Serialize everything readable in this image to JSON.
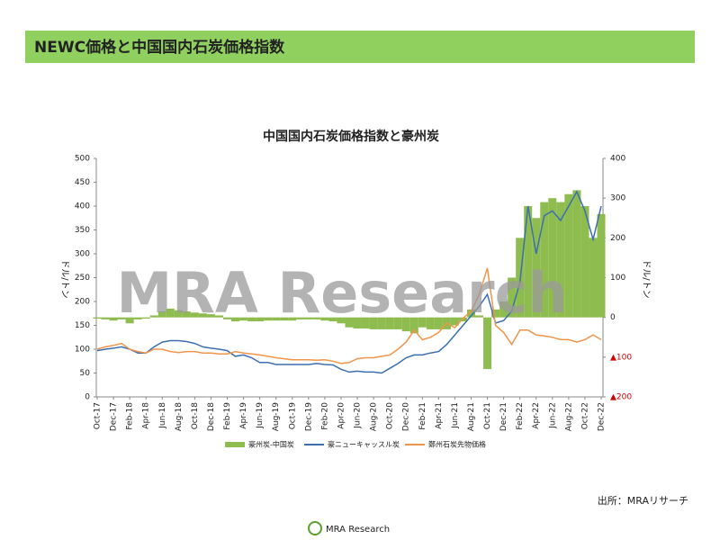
{
  "slide_title": "NEWC価格と中国国内石炭価格指数",
  "source": "出所：MRAリサーチ",
  "logo_text": "MRA Research",
  "chart_data": {
    "type": "combo",
    "title": "中国国内石炭価格指数と豪州炭",
    "watermark": "MRA Research",
    "y_label": "ドル/トン",
    "y2_label": "ドル/トン",
    "categories": [
      "Oct-17",
      null,
      "Dec-17",
      null,
      "Feb-18",
      null,
      "Apr-18",
      null,
      "Jun-18",
      null,
      "Aug-18",
      null,
      "Oct-18",
      null,
      "Dec-18",
      null,
      "Feb-19",
      null,
      "Apr-19",
      null,
      "Jun-19",
      null,
      "Aug-19",
      null,
      "Oct-19",
      null,
      "Dec-19",
      null,
      "Feb-20",
      null,
      "Apr-20",
      null,
      "Jun-20",
      null,
      "Aug-20",
      null,
      "Oct-20",
      null,
      "Dec-20",
      null,
      "Feb-21",
      null,
      "Apr-21",
      null,
      "Jun-21",
      null,
      "Aug-21",
      null,
      "Oct-21",
      null,
      "Dec-21",
      null,
      "Feb-22",
      null,
      "Apr-22",
      null,
      "Jun-22",
      null,
      "Aug-22",
      null,
      "Oct-22",
      null,
      "Dec-22"
    ],
    "ylim": [
      0,
      500
    ],
    "yticks": [
      0,
      50,
      100,
      150,
      200,
      250,
      300,
      350,
      400,
      450,
      500
    ],
    "y2lim": [
      -200,
      400
    ],
    "y2ticks": [
      400,
      300,
      200,
      100,
      0,
      {
        "value": -100,
        "label": "▲100"
      },
      {
        "value": -200,
        "label": "▲200"
      }
    ],
    "series": [
      {
        "name": "豪州炭-中国炭",
        "type": "bar",
        "axis": "y2",
        "color": "#8fbc4f",
        "values": [
          -3,
          -5,
          -8,
          -5,
          -15,
          -5,
          -3,
          5,
          15,
          22,
          18,
          15,
          12,
          10,
          8,
          5,
          -5,
          -10,
          -8,
          -10,
          -10,
          -8,
          -8,
          -8,
          -8,
          -5,
          -5,
          -5,
          -8,
          -10,
          -15,
          -25,
          -28,
          -28,
          -30,
          -30,
          -30,
          -30,
          -35,
          -40,
          -25,
          -30,
          -30,
          -30,
          -20,
          -10,
          20,
          5,
          -130,
          20,
          40,
          100,
          200,
          280,
          250,
          290,
          300,
          290,
          310,
          320,
          280,
          200,
          260
        ]
      },
      {
        "name": "豪ニューキャッスル炭",
        "type": "line",
        "color": "#3d6fb0",
        "values": [
          97,
          100,
          102,
          105,
          100,
          92,
          92,
          105,
          115,
          118,
          118,
          116,
          112,
          105,
          102,
          100,
          97,
          85,
          88,
          82,
          72,
          72,
          68,
          68,
          68,
          68,
          68,
          70,
          68,
          67,
          58,
          52,
          54,
          52,
          52,
          50,
          60,
          70,
          82,
          88,
          88,
          92,
          95,
          110,
          130,
          150,
          170,
          190,
          215,
          155,
          160,
          180,
          240,
          400,
          300,
          380,
          390,
          370,
          400,
          430,
          390,
          330,
          400
        ]
      },
      {
        "name": "鄭州石炭先物価格",
        "type": "line",
        "color": "#f0954a",
        "values": [
          100,
          105,
          108,
          112,
          100,
          95,
          92,
          100,
          100,
          95,
          93,
          95,
          95,
          92,
          92,
          90,
          90,
          95,
          92,
          90,
          88,
          85,
          82,
          80,
          78,
          78,
          78,
          77,
          78,
          75,
          70,
          72,
          80,
          82,
          82,
          85,
          88,
          100,
          115,
          140,
          120,
          125,
          135,
          155,
          145,
          165,
          180,
          215,
          270,
          150,
          135,
          110,
          140,
          140,
          130,
          128,
          125,
          120,
          120,
          115,
          120,
          130,
          120
        ]
      }
    ]
  }
}
